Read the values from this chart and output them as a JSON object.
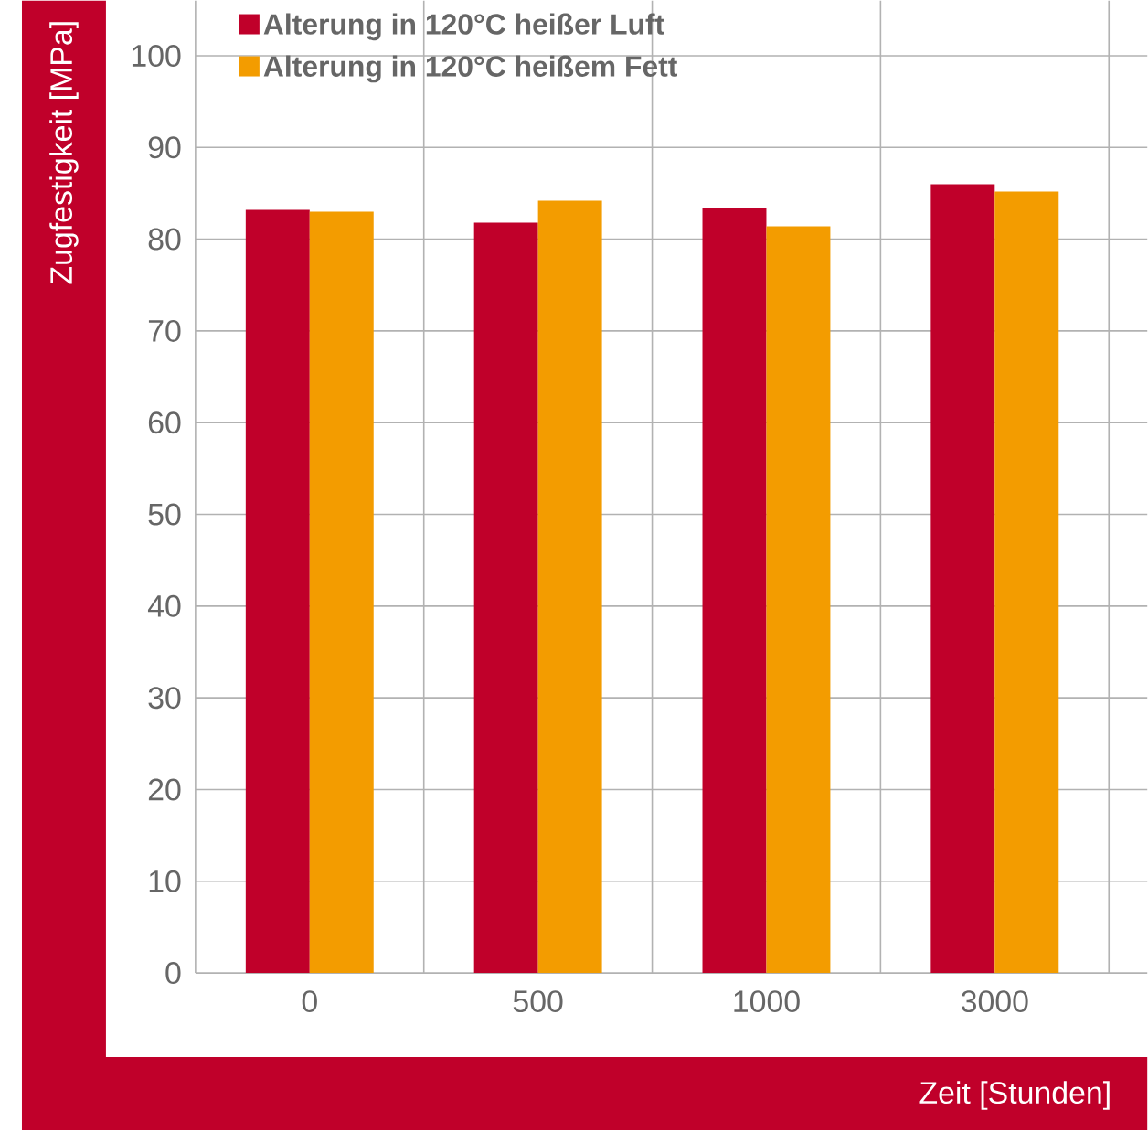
{
  "chart_data": {
    "type": "bar",
    "xlabel": "Zeit [Stunden]",
    "ylabel": "Zugfestigkeit [MPa]",
    "categories": [
      "0",
      "500",
      "1000",
      "3000"
    ],
    "series": [
      {
        "name": "Alterung in 120°C heißer Luft",
        "color": "#c0002a",
        "values": [
          83.2,
          81.8,
          83.4,
          86
        ]
      },
      {
        "name": "Alterung in 120°C heißem Fett",
        "color": "#f39c00",
        "values": [
          83,
          84.2,
          81.4,
          85.2
        ]
      }
    ],
    "ylim": [
      0,
      106
    ],
    "yticks": [
      0,
      10,
      20,
      30,
      40,
      50,
      60,
      70,
      80,
      90,
      100
    ],
    "grid": true,
    "legend": "top left"
  }
}
